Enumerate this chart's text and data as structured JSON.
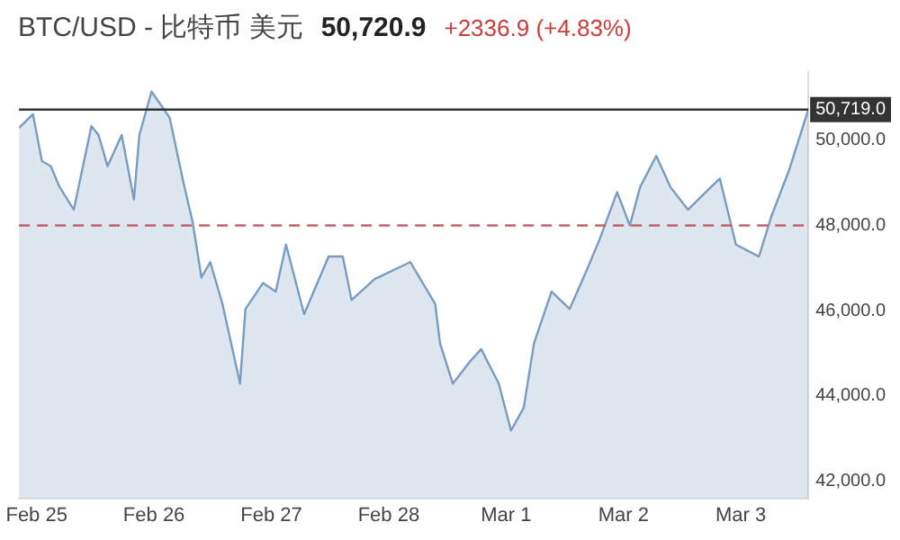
{
  "chart_data": {
    "type": "area",
    "title": "BTC/USD - 比特币 美元",
    "annotations": [
      "50,720.9",
      "+2336.9 (+4.83%)"
    ],
    "x": [
      "--02-24T20:24",
      "--02-24T23:15",
      "--02-25T01:05",
      "--02-25T02:54",
      "--02-25T04:42",
      "--02-25T07:36",
      "--02-25T11:12",
      "--02-25T12:40",
      "--02-25T14:30",
      "--02-25T17:24",
      "--02-25T19:54",
      "--02-25T21:00",
      "--02-25T23:30",
      "--02-26T03:12",
      "--02-26T06:00",
      "--02-26T07:54",
      "--02-26T09:42",
      "--02-26T11:30",
      "--02-26T14:00",
      "--02-26T17:36",
      "--02-26T18:42",
      "--02-26T22:18",
      "--02-27T00:54",
      "--02-27T03:00",
      "--02-27T06:42",
      "--02-27T11:42",
      "--02-27T14:36",
      "--02-27T16:24",
      "--02-27T21:06",
      "--02-28T04:24",
      "--02-28T09:30",
      "--02-28T10:30",
      "--02-28T13:06",
      "--02-28T16:42",
      "--02-28T18:54",
      "--02-28T22:30",
      "--03-01T01:00",
      "--03-01T03:36",
      "--03-01T05:42",
      "--03-01T09:18",
      "--03-01T13:00",
      "--03-01T16:36",
      "--03-01T19:06",
      "--03-01T22:42",
      "--03-02T01:18",
      "--03-02T03:24",
      "--03-02T06:42",
      "--03-02T09:36",
      "--03-02T13:12",
      "--03-02T16:48",
      "--03-02T19:42",
      "--03-02T23:00",
      "--03-03T03:42",
      "--03-03T06:12",
      "--03-03T09:54",
      "--03-03T13:48"
    ],
    "series": [
      {
        "color": "#7a9cc0",
        "values": [
          50290,
          50610,
          49510,
          49390,
          48900,
          48370,
          50330,
          50120,
          49390,
          50120,
          48610,
          50120,
          51140,
          50530,
          49020,
          48080,
          46780,
          47140,
          46160,
          44290,
          46040,
          46650,
          46450,
          47550,
          45920,
          47270,
          47270,
          46250,
          46740,
          47140,
          46160,
          45230,
          44290,
          44820,
          45100,
          44290,
          43190,
          43720,
          45230,
          46450,
          46040,
          46980,
          47670,
          48780,
          48000,
          48900,
          49630,
          48900,
          48370,
          48780,
          49100,
          47550,
          47270,
          48200,
          49310,
          50719
        ]
      }
    ],
    "xlim": [
      "--02-24T20:24",
      "--03-03T13:48"
    ],
    "xticks": [
      {
        "value": "--02-25",
        "label": "Feb 25"
      },
      {
        "value": "--02-26",
        "label": "Feb 26"
      },
      {
        "value": "--02-27",
        "label": "Feb 27"
      },
      {
        "value": "--02-28",
        "label": "Feb 28"
      },
      {
        "value": "--03-01",
        "label": "Mar 1"
      },
      {
        "value": "--03-02",
        "label": "Mar 2"
      },
      {
        "value": "--03-03",
        "label": "Mar 3"
      }
    ],
    "ylim": [
      41600,
      51600
    ],
    "yticks": [
      {
        "value": 42000,
        "label": "42,000.0"
      },
      {
        "value": 44000,
        "label": "44,000.0"
      },
      {
        "value": 46000,
        "label": "46,000.0"
      },
      {
        "value": 48000,
        "label": "48,000.0"
      },
      {
        "value": 50000,
        "label": "50,000.0"
      }
    ],
    "ref_lines": [
      {
        "axis": "y",
        "value": 50719,
        "label": "50,719.0",
        "color": "#333333",
        "line_style": "solid"
      },
      {
        "axis": "y",
        "value": 48000,
        "label": null,
        "color": "#c0606a",
        "line_style": "dashed"
      }
    ],
    "grid": false,
    "legend": false,
    "marker": "none",
    "line_style": "solid"
  }
}
